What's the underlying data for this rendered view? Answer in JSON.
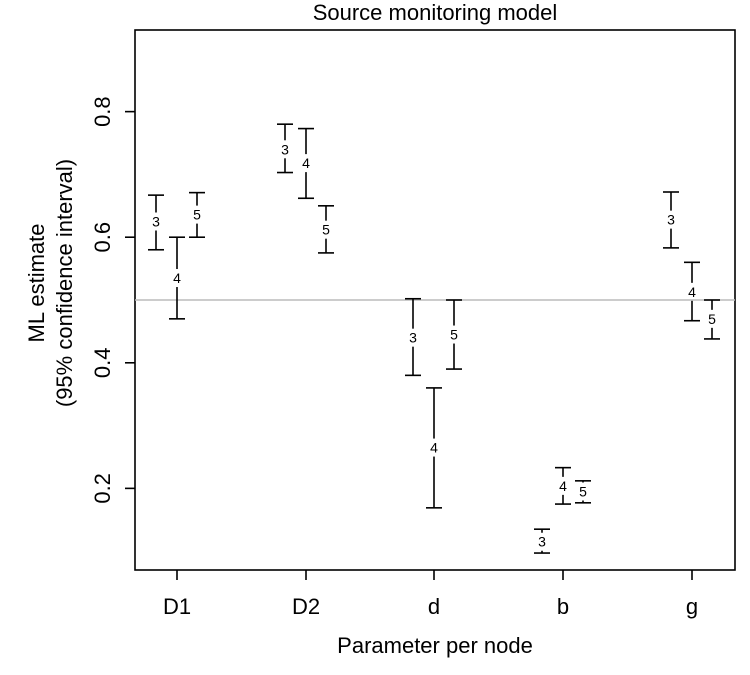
{
  "chart_data": {
    "type": "errorbar",
    "title": "Source monitoring model",
    "xlabel": "Parameter per node",
    "ylabel_line1": "ML estimate",
    "ylabel_line2": "(95% confidence interval)",
    "categories": [
      "D1",
      "D2",
      "d",
      "b",
      "g"
    ],
    "yticks": [
      0.2,
      0.4,
      0.6,
      0.8
    ],
    "ytick_labels": [
      "0.2",
      "0.4",
      "0.6",
      "0.8"
    ],
    "ylim": [
      0.07,
      0.93
    ],
    "reference_line": 0.5,
    "series": [
      {
        "name": "3",
        "points": [
          {
            "category": "D1",
            "estimate": 0.625,
            "lower": 0.58,
            "upper": 0.667
          },
          {
            "category": "D2",
            "estimate": 0.74,
            "lower": 0.703,
            "upper": 0.78
          },
          {
            "category": "d",
            "estimate": 0.44,
            "lower": 0.38,
            "upper": 0.502
          },
          {
            "category": "b",
            "estimate": 0.115,
            "lower": 0.097,
            "upper": 0.135
          },
          {
            "category": "g",
            "estimate": 0.628,
            "lower": 0.583,
            "upper": 0.672
          }
        ]
      },
      {
        "name": "4",
        "points": [
          {
            "category": "D1",
            "estimate": 0.535,
            "lower": 0.47,
            "upper": 0.6
          },
          {
            "category": "D2",
            "estimate": 0.718,
            "lower": 0.662,
            "upper": 0.773
          },
          {
            "category": "d",
            "estimate": 0.265,
            "lower": 0.169,
            "upper": 0.36
          },
          {
            "category": "b",
            "estimate": 0.204,
            "lower": 0.175,
            "upper": 0.233
          },
          {
            "category": "g",
            "estimate": 0.513,
            "lower": 0.467,
            "upper": 0.56
          }
        ]
      },
      {
        "name": "5",
        "points": [
          {
            "category": "D1",
            "estimate": 0.636,
            "lower": 0.6,
            "upper": 0.671
          },
          {
            "category": "D2",
            "estimate": 0.612,
            "lower": 0.575,
            "upper": 0.65
          },
          {
            "category": "d",
            "estimate": 0.445,
            "lower": 0.39,
            "upper": 0.5
          },
          {
            "category": "b",
            "estimate": 0.195,
            "lower": 0.177,
            "upper": 0.212
          },
          {
            "category": "g",
            "estimate": 0.47,
            "lower": 0.438,
            "upper": 0.5
          }
        ]
      }
    ]
  }
}
